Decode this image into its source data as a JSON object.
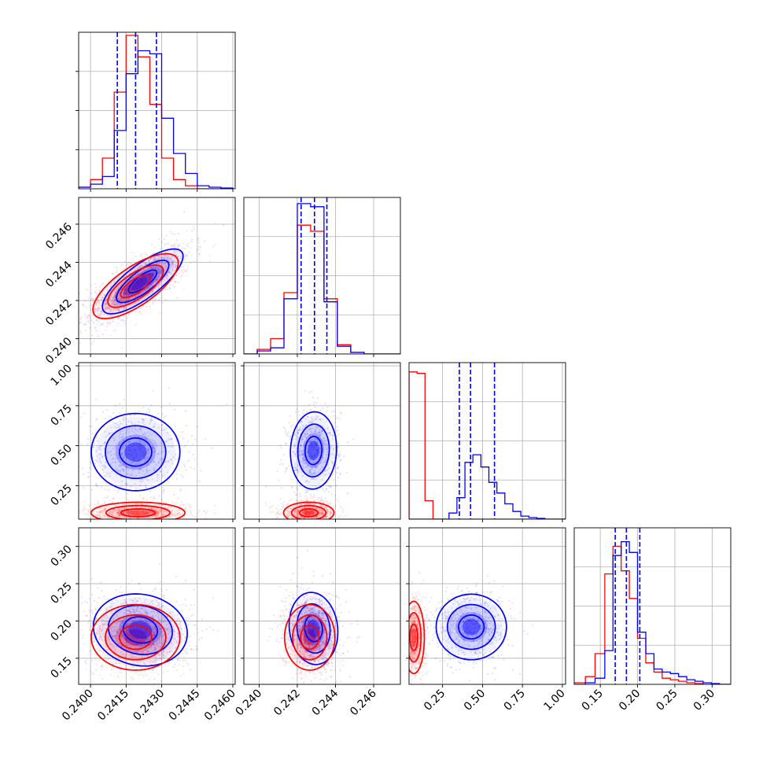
{
  "chart_data": {
    "type": "corner",
    "series_colors": {
      "blue": "#0000ff",
      "red": "#ff0000"
    },
    "grid": true,
    "n_params": 4,
    "param_ranges": [
      [
        0.2395,
        0.2461
      ],
      [
        0.2392,
        0.2474
      ],
      [
        0.04,
        1.02
      ],
      [
        0.115,
        0.325
      ]
    ],
    "tick_values": [
      [
        0.24,
        0.2415,
        0.243,
        0.2445,
        0.246
      ],
      [
        0.24,
        0.242,
        0.244,
        0.246
      ],
      [
        0.25,
        0.5,
        0.75,
        1.0
      ],
      [
        0.15,
        0.2,
        0.25,
        0.3
      ]
    ],
    "tick_labels": [
      [
        "0.2400",
        "0.2415",
        "0.2430",
        "0.2445",
        "0.2460"
      ],
      [
        "0.240",
        "0.242",
        "0.244",
        "0.246"
      ],
      [
        "0.25",
        "0.50",
        "0.75",
        "1.00"
      ],
      [
        "0.15",
        "0.20",
        "0.25",
        "0.30"
      ]
    ],
    "quantile_lines_blue": [
      [
        0.24113,
        0.2419,
        0.24278
      ],
      [
        0.2422,
        0.2429,
        0.24355
      ],
      [
        0.355,
        0.425,
        0.575
      ],
      [
        0.17,
        0.185,
        0.203
      ]
    ],
    "histograms": [
      {
        "bins": [
          0.2395,
          0.24,
          0.2405,
          0.241,
          0.2415,
          0.242,
          0.2425,
          0.243,
          0.2435,
          0.244,
          0.2445,
          0.245,
          0.2455,
          0.246
        ],
        "blue": [
          0.01,
          0.03,
          0.08,
          0.38,
          0.75,
          0.9,
          0.88,
          0.46,
          0.23,
          0.1,
          0.02,
          0.01,
          0.005
        ],
        "red": [
          0.01,
          0.06,
          0.2,
          0.63,
          1.0,
          0.86,
          0.55,
          0.2,
          0.06,
          0.02,
          0.0,
          0.0,
          0.0
        ]
      },
      {
        "bins": [
          0.2392,
          0.2399,
          0.2406,
          0.2413,
          0.242,
          0.2427,
          0.2434,
          0.2441,
          0.2448,
          0.2455,
          0.2462,
          0.2474
        ],
        "blue": [
          0.0,
          0.02,
          0.04,
          0.36,
          0.98,
          0.96,
          0.34,
          0.05,
          0.01,
          0.0,
          0.0
        ],
        "red": [
          0.0,
          0.03,
          0.1,
          0.4,
          0.84,
          0.8,
          0.36,
          0.06,
          0.01,
          0.0,
          0.0
        ]
      },
      {
        "bins": [
          0.04,
          0.09,
          0.14,
          0.19,
          0.24,
          0.29,
          0.34,
          0.39,
          0.44,
          0.49,
          0.54,
          0.59,
          0.64,
          0.69,
          0.74,
          0.79,
          0.84,
          0.89,
          1.02
        ],
        "blue": [
          0.0,
          0.0,
          0.0,
          0.0,
          0.0,
          0.04,
          0.14,
          0.37,
          0.42,
          0.34,
          0.24,
          0.17,
          0.1,
          0.05,
          0.02,
          0.01,
          0.005,
          0.0
        ],
        "red": [
          0.96,
          0.95,
          0.12,
          0.0,
          0.0,
          0.0,
          0.0,
          0.0,
          0.0,
          0.0,
          0.0,
          0.0,
          0.0,
          0.0,
          0.0,
          0.0,
          0.0,
          0.0
        ]
      },
      {
        "bins": [
          0.115,
          0.13,
          0.143,
          0.156,
          0.167,
          0.178,
          0.189,
          0.2,
          0.211,
          0.222,
          0.233,
          0.244,
          0.255,
          0.266,
          0.277,
          0.288,
          0.299,
          0.31,
          0.325
        ],
        "blue": [
          0.0,
          0.01,
          0.04,
          0.22,
          0.84,
          0.93,
          0.86,
          0.34,
          0.2,
          0.1,
          0.08,
          0.07,
          0.05,
          0.03,
          0.02,
          0.01,
          0.005,
          0.0
        ],
        "red": [
          0.01,
          0.05,
          0.2,
          0.72,
          0.9,
          0.74,
          0.56,
          0.3,
          0.14,
          0.08,
          0.04,
          0.03,
          0.02,
          0.01,
          0.005,
          0.0,
          0.0,
          0.0
        ]
      }
    ],
    "contours": [
      {
        "row": 1,
        "col": 0,
        "blue": {
          "center": [
            0.2422,
            0.243
          ],
          "sigma": [
            0.00085,
            0.00085
          ],
          "rho": 0.78,
          "levels": [
            0.7,
            1.3,
            2.0
          ]
        },
        "red": {
          "center": [
            0.2419,
            0.24275
          ],
          "sigma": [
            0.0009,
            0.00085
          ],
          "rho": 0.72,
          "levels": [
            0.7,
            1.3,
            2.0
          ]
        }
      },
      {
        "row": 2,
        "col": 0,
        "blue": {
          "center": [
            0.2419,
            0.46
          ],
          "sigma": [
            0.00085,
            0.11
          ],
          "rho": 0.0,
          "levels": [
            0.8,
            1.5,
            2.2
          ]
        },
        "red": {
          "center": [
            0.242,
            0.08
          ],
          "sigma": [
            0.0009,
            0.03
          ],
          "rho": 0.0,
          "levels": [
            0.8,
            1.5,
            2.2
          ]
        }
      },
      {
        "row": 2,
        "col": 1,
        "blue": {
          "center": [
            0.24285,
            0.47
          ],
          "sigma": [
            0.00055,
            0.11
          ],
          "rho": 0.05,
          "levels": [
            0.8,
            1.5,
            2.2
          ]
        },
        "red": {
          "center": [
            0.2426,
            0.08
          ],
          "sigma": [
            0.0006,
            0.03
          ],
          "rho": 0.0,
          "levels": [
            0.8,
            1.5,
            2.2
          ]
        }
      },
      {
        "row": 3,
        "col": 0,
        "blue": {
          "center": [
            0.2421,
            0.188
          ],
          "sigma": [
            0.0009,
            0.022
          ],
          "rho": -0.1,
          "levels": [
            0.8,
            1.5,
            2.2
          ]
        },
        "red": {
          "center": [
            0.2419,
            0.178
          ],
          "sigma": [
            0.00085,
            0.02
          ],
          "rho": 0.0,
          "levels": [
            0.8,
            1.5,
            2.2
          ]
        }
      },
      {
        "row": 3,
        "col": 1,
        "blue": {
          "center": [
            0.24285,
            0.19
          ],
          "sigma": [
            0.00058,
            0.022
          ],
          "rho": -0.1,
          "levels": [
            0.8,
            1.5,
            2.2
          ]
        },
        "red": {
          "center": [
            0.24265,
            0.178
          ],
          "sigma": [
            0.0006,
            0.02
          ],
          "rho": 0.0,
          "levels": [
            0.8,
            1.5,
            2.2
          ]
        }
      },
      {
        "row": 3,
        "col": 2,
        "blue": {
          "center": [
            0.43,
            0.192
          ],
          "sigma": [
            0.1,
            0.02
          ],
          "rho": 0.0,
          "levels": [
            0.8,
            1.5,
            2.2
          ]
        },
        "red": {
          "center": [
            0.07,
            0.178
          ],
          "sigma": [
            0.03,
            0.022
          ],
          "rho": 0.0,
          "levels": [
            0.8,
            1.5,
            2.2
          ]
        }
      }
    ]
  }
}
